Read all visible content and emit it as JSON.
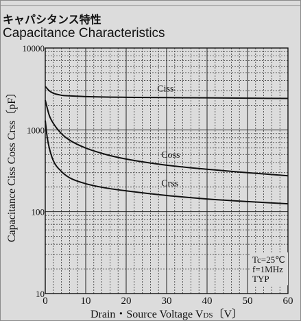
{
  "header": {
    "title_jp": "キャパシタンス特性",
    "title_en": "Capacitance Characteristics"
  },
  "chart_data": {
    "type": "line",
    "xlabel": "Drain・Source Voltage VDS〔V〕",
    "xlabel_main": "Drain・Source Voltage  V",
    "xlabel_sub": "DS",
    "xlabel_unit": "〔V〕",
    "ylabel": "Capacitance  Ciss Coss Crss〔pF〕",
    "x_scale": "linear",
    "y_scale": "log",
    "xlim": [
      0,
      60
    ],
    "ylim": [
      10,
      10000
    ],
    "x_ticks": [
      0,
      10,
      20,
      30,
      40,
      50,
      60
    ],
    "y_ticks": [
      10,
      100,
      1000,
      10000
    ],
    "grid": true,
    "annotation": [
      "Tc=25℃",
      "f=1MHz",
      "TYP"
    ],
    "series": [
      {
        "name": "Ciss",
        "x": [
          0,
          1,
          2,
          4,
          6,
          10,
          20,
          30,
          40,
          50,
          60
        ],
        "values": [
          3400,
          3000,
          2800,
          2650,
          2600,
          2550,
          2500,
          2480,
          2460,
          2440,
          2420
        ]
      },
      {
        "name": "Coss",
        "x": [
          0,
          1,
          2,
          4,
          6,
          10,
          15,
          20,
          30,
          40,
          50,
          60
        ],
        "values": [
          2300,
          1500,
          1200,
          900,
          750,
          600,
          500,
          440,
          370,
          330,
          300,
          275
        ]
      },
      {
        "name": "Crss",
        "x": [
          0,
          0.5,
          1,
          2,
          4,
          6,
          10,
          15,
          20,
          30,
          40,
          50,
          60
        ],
        "values": [
          1300,
          800,
          600,
          420,
          310,
          260,
          220,
          195,
          180,
          158,
          143,
          133,
          125
        ]
      }
    ]
  }
}
